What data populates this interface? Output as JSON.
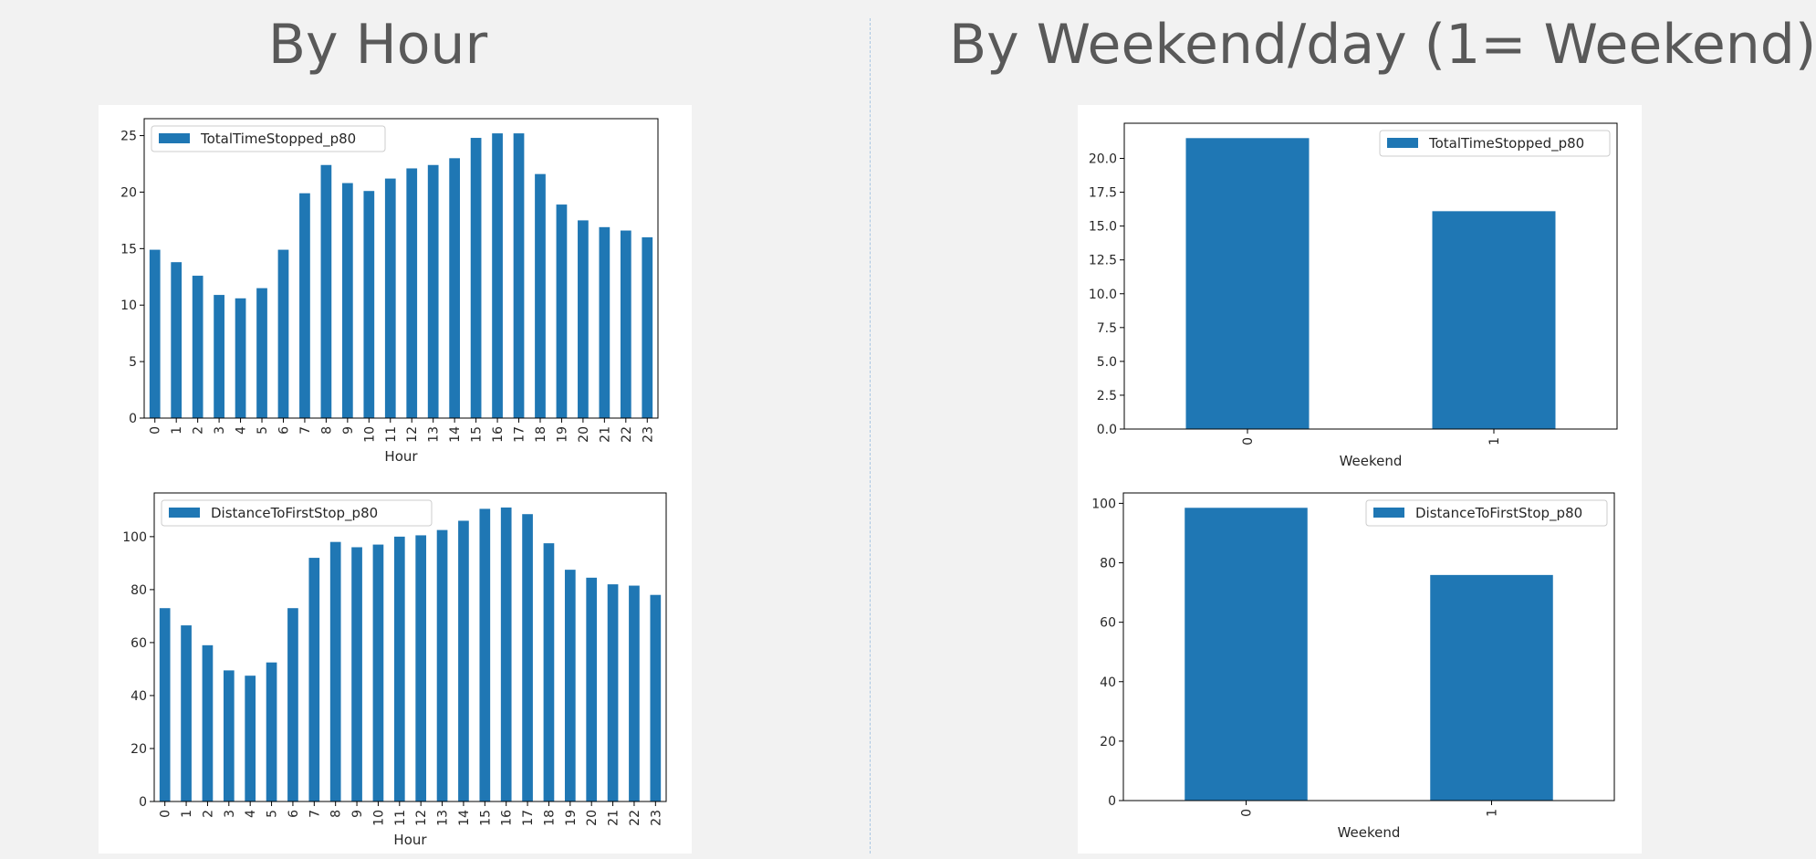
{
  "slide": {
    "left_title": "By Hour",
    "right_title": "By Weekend/day (1= Weekend)"
  },
  "colors": {
    "bar": "#1f77b4",
    "background": "#f2f2f2",
    "title": "#595959"
  },
  "chart_data": [
    {
      "type": "bar",
      "title": "",
      "xlabel": "Hour",
      "ylabel": "",
      "categories": [
        "0",
        "1",
        "2",
        "3",
        "4",
        "5",
        "6",
        "7",
        "8",
        "9",
        "10",
        "11",
        "12",
        "13",
        "14",
        "15",
        "16",
        "17",
        "18",
        "19",
        "20",
        "21",
        "22",
        "23"
      ],
      "series": [
        {
          "name": "TotalTimeStopped_p80",
          "values": [
            14.9,
            13.8,
            12.6,
            10.9,
            10.6,
            11.5,
            14.9,
            19.9,
            22.4,
            20.8,
            20.1,
            21.2,
            22.1,
            22.4,
            23.0,
            24.8,
            25.2,
            25.2,
            21.6,
            18.9,
            17.5,
            16.9,
            16.6,
            16.0
          ]
        }
      ],
      "ylim": [
        0,
        26.5
      ],
      "yticks": [
        0,
        5,
        10,
        15,
        20,
        25
      ],
      "ytick_labels": [
        "0",
        "5",
        "10",
        "15",
        "20",
        "25"
      ],
      "legend": "upper-left",
      "grid": false
    },
    {
      "type": "bar",
      "title": "",
      "xlabel": "Hour",
      "ylabel": "",
      "categories": [
        "0",
        "1",
        "2",
        "3",
        "4",
        "5",
        "6",
        "7",
        "8",
        "9",
        "10",
        "11",
        "12",
        "13",
        "14",
        "15",
        "16",
        "17",
        "18",
        "19",
        "20",
        "21",
        "22",
        "23"
      ],
      "series": [
        {
          "name": "DistanceToFirstStop_p80",
          "values": [
            73,
            66.5,
            59,
            49.5,
            47.5,
            52.5,
            73,
            92,
            98,
            96,
            97,
            100,
            100.5,
            102.5,
            106,
            110.5,
            111,
            108.5,
            97.5,
            87.5,
            84.5,
            82,
            81.5,
            78
          ]
        }
      ],
      "ylim": [
        0,
        116.5
      ],
      "yticks": [
        0,
        20,
        40,
        60,
        80,
        100
      ],
      "ytick_labels": [
        "0",
        "20",
        "40",
        "60",
        "80",
        "100"
      ],
      "legend": "upper-left",
      "grid": false
    },
    {
      "type": "bar",
      "title": "",
      "xlabel": "Weekend",
      "ylabel": "",
      "categories": [
        "0",
        "1"
      ],
      "series": [
        {
          "name": "TotalTimeStopped_p80",
          "values": [
            21.5,
            16.1
          ]
        }
      ],
      "ylim": [
        0,
        22.6
      ],
      "yticks": [
        0,
        2.5,
        5,
        7.5,
        10,
        12.5,
        15,
        17.5,
        20
      ],
      "ytick_labels": [
        "0.0",
        "2.5",
        "5.0",
        "7.5",
        "10.0",
        "12.5",
        "15.0",
        "17.5",
        "20.0"
      ],
      "legend": "upper-right",
      "grid": false
    },
    {
      "type": "bar",
      "title": "",
      "xlabel": "Weekend",
      "ylabel": "",
      "categories": [
        "0",
        "1"
      ],
      "series": [
        {
          "name": "DistanceToFirstStop_p80",
          "values": [
            98.5,
            75.9
          ]
        }
      ],
      "ylim": [
        0,
        103.5
      ],
      "yticks": [
        0,
        20,
        40,
        60,
        80,
        100
      ],
      "ytick_labels": [
        "0",
        "20",
        "40",
        "60",
        "80",
        "100"
      ],
      "legend": "upper-right",
      "grid": false
    }
  ]
}
